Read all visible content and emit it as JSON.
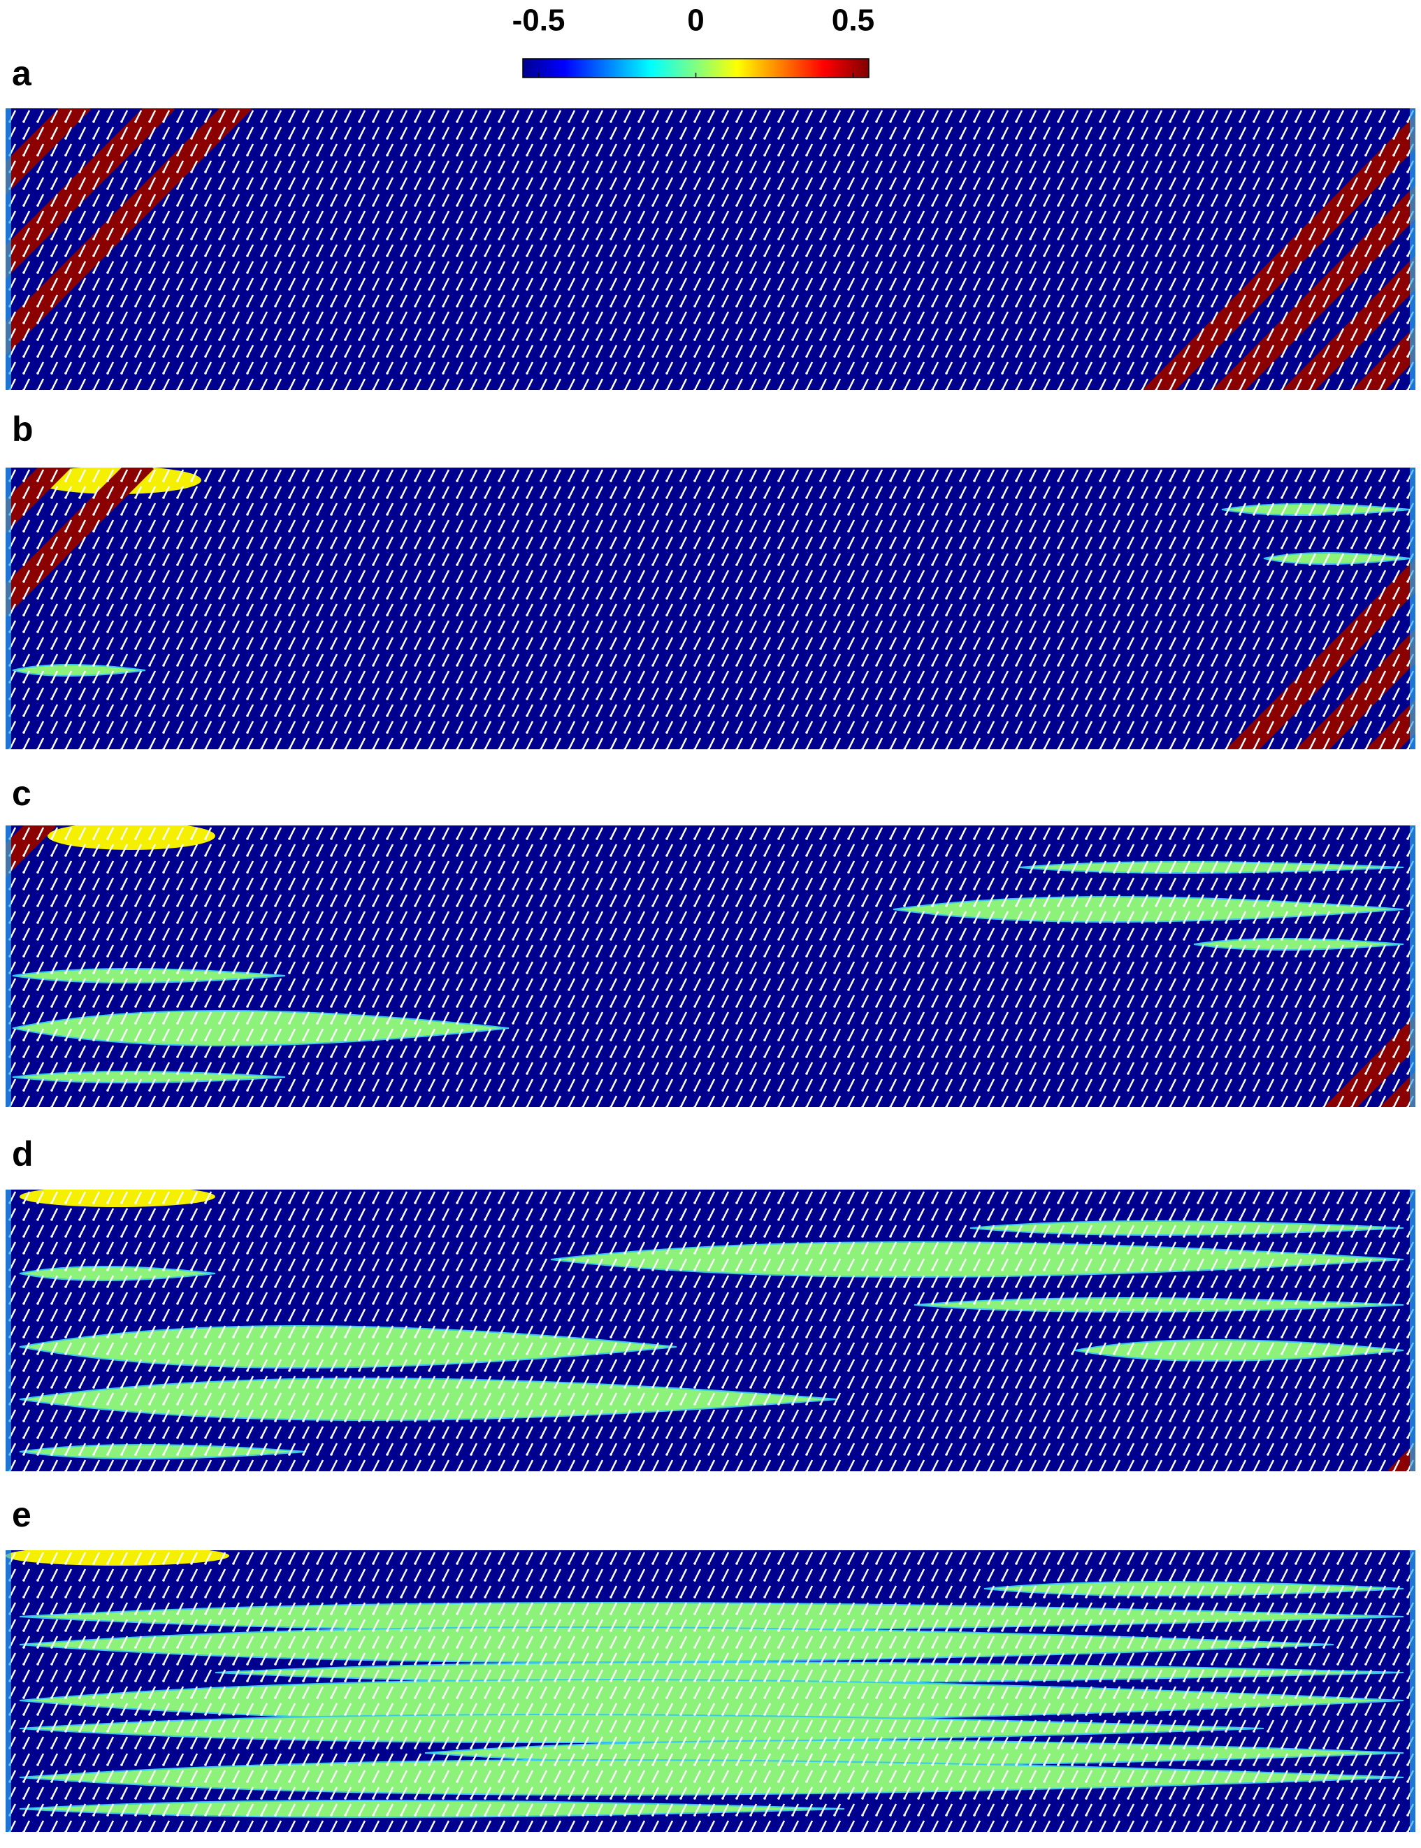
{
  "colorbar": {
    "lim": [
      -0.55,
      0.55
    ],
    "ticks": [
      {
        "value": -0.5,
        "label": "-0.5"
      },
      {
        "value": 0,
        "label": "0"
      },
      {
        "value": 0.5,
        "label": "0.5"
      }
    ]
  },
  "panels": [
    {
      "label": "a"
    },
    {
      "label": "b"
    },
    {
      "label": "c"
    },
    {
      "label": "d"
    },
    {
      "label": "e"
    }
  ]
}
